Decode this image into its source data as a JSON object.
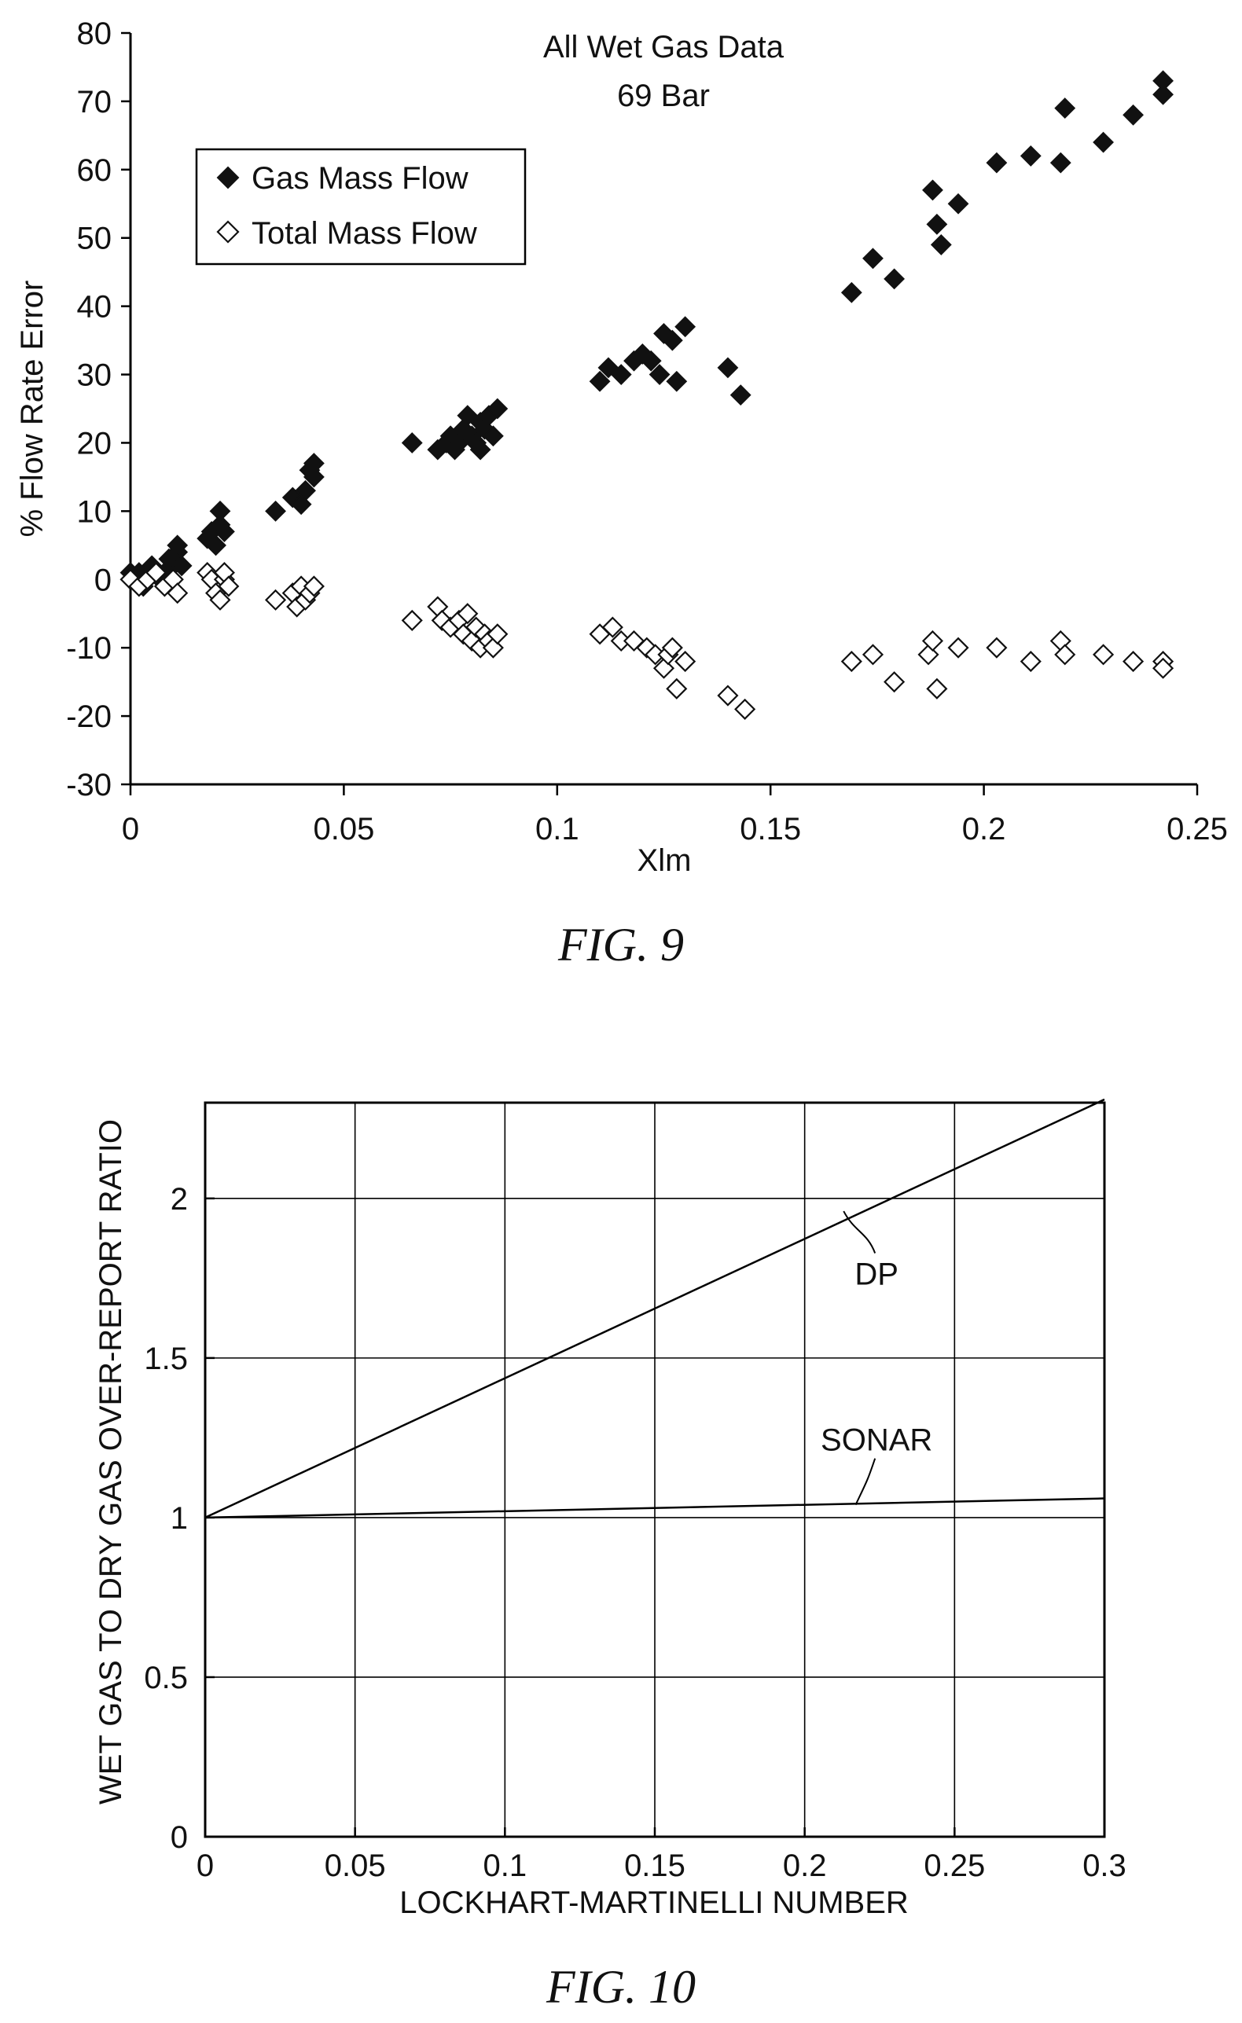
{
  "figures": [
    {
      "label": "FIG. 9"
    },
    {
      "label": "FIG. 10"
    }
  ],
  "chart_data": [
    {
      "type": "scatter",
      "title": "All Wet Gas Data",
      "subtitle": "69 Bar",
      "xlabel": "Xlm",
      "ylabel": "% Flow Rate Error",
      "xlim": [
        0,
        0.25
      ],
      "ylim": [
        -30,
        80
      ],
      "xticks": [
        "0",
        "0.05",
        "0.1",
        "0.15",
        "0.2",
        "0.25"
      ],
      "yticks": [
        "80",
        "70",
        "60",
        "50",
        "40",
        "30",
        "20",
        "10",
        "0",
        "-10",
        "-20",
        "-30"
      ],
      "grid": false,
      "legend_position": "top-left",
      "series": [
        {
          "name": "Gas Mass Flow",
          "marker": "filled-diamond",
          "color": "#111111",
          "points": [
            [
              0.0,
              1
            ],
            [
              0.001,
              0
            ],
            [
              0.002,
              1
            ],
            [
              0.003,
              -1
            ],
            [
              0.004,
              0
            ],
            [
              0.005,
              2
            ],
            [
              0.006,
              1
            ],
            [
              0.007,
              0
            ],
            [
              0.008,
              1
            ],
            [
              0.009,
              3
            ],
            [
              0.01,
              2
            ],
            [
              0.011,
              4
            ],
            [
              0.011,
              5
            ],
            [
              0.012,
              2
            ],
            [
              0.01,
              0
            ],
            [
              0.018,
              6
            ],
            [
              0.019,
              7
            ],
            [
              0.02,
              5
            ],
            [
              0.021,
              8
            ],
            [
              0.021,
              10
            ],
            [
              0.022,
              7
            ],
            [
              0.034,
              10
            ],
            [
              0.038,
              12
            ],
            [
              0.04,
              11
            ],
            [
              0.041,
              13
            ],
            [
              0.042,
              16
            ],
            [
              0.043,
              15
            ],
            [
              0.043,
              17
            ],
            [
              0.066,
              20
            ],
            [
              0.072,
              19
            ],
            [
              0.074,
              20
            ],
            [
              0.075,
              21
            ],
            [
              0.076,
              19
            ],
            [
              0.077,
              20
            ],
            [
              0.078,
              22
            ],
            [
              0.079,
              24
            ],
            [
              0.08,
              21
            ],
            [
              0.081,
              20
            ],
            [
              0.082,
              23
            ],
            [
              0.082,
              19
            ],
            [
              0.083,
              22
            ],
            [
              0.084,
              24
            ],
            [
              0.085,
              21
            ],
            [
              0.086,
              25
            ],
            [
              0.11,
              29
            ],
            [
              0.112,
              31
            ],
            [
              0.115,
              30
            ],
            [
              0.118,
              32
            ],
            [
              0.12,
              33
            ],
            [
              0.122,
              32
            ],
            [
              0.124,
              30
            ],
            [
              0.125,
              36
            ],
            [
              0.127,
              35
            ],
            [
              0.128,
              29
            ],
            [
              0.13,
              37
            ],
            [
              0.14,
              31
            ],
            [
              0.143,
              27
            ],
            [
              0.169,
              42
            ],
            [
              0.174,
              47
            ],
            [
              0.179,
              44
            ],
            [
              0.188,
              57
            ],
            [
              0.189,
              52
            ],
            [
              0.19,
              49
            ],
            [
              0.194,
              55
            ],
            [
              0.203,
              61
            ],
            [
              0.211,
              62
            ],
            [
              0.218,
              61
            ],
            [
              0.219,
              69
            ],
            [
              0.228,
              64
            ],
            [
              0.235,
              68
            ],
            [
              0.242,
              71
            ],
            [
              0.242,
              73
            ]
          ]
        },
        {
          "name": "Total Mass Flow",
          "marker": "open-diamond",
          "color": "#111111",
          "points": [
            [
              0.0,
              0
            ],
            [
              0.002,
              -1
            ],
            [
              0.004,
              0
            ],
            [
              0.006,
              1
            ],
            [
              0.008,
              -1
            ],
            [
              0.01,
              0
            ],
            [
              0.011,
              -2
            ],
            [
              0.018,
              1
            ],
            [
              0.019,
              0
            ],
            [
              0.02,
              -2
            ],
            [
              0.021,
              -3
            ],
            [
              0.022,
              0
            ],
            [
              0.022,
              1
            ],
            [
              0.023,
              -1
            ],
            [
              0.034,
              -3
            ],
            [
              0.038,
              -2
            ],
            [
              0.039,
              -4
            ],
            [
              0.04,
              -1
            ],
            [
              0.041,
              -3
            ],
            [
              0.042,
              -2
            ],
            [
              0.043,
              -1
            ],
            [
              0.066,
              -6
            ],
            [
              0.072,
              -4
            ],
            [
              0.073,
              -6
            ],
            [
              0.075,
              -7
            ],
            [
              0.077,
              -6
            ],
            [
              0.078,
              -8
            ],
            [
              0.079,
              -5
            ],
            [
              0.08,
              -9
            ],
            [
              0.081,
              -7
            ],
            [
              0.082,
              -10
            ],
            [
              0.083,
              -8
            ],
            [
              0.084,
              -9
            ],
            [
              0.085,
              -10
            ],
            [
              0.086,
              -8
            ],
            [
              0.11,
              -8
            ],
            [
              0.113,
              -7
            ],
            [
              0.115,
              -9
            ],
            [
              0.118,
              -9
            ],
            [
              0.121,
              -10
            ],
            [
              0.123,
              -11
            ],
            [
              0.125,
              -13
            ],
            [
              0.126,
              -11
            ],
            [
              0.127,
              -10
            ],
            [
              0.128,
              -16
            ],
            [
              0.13,
              -12
            ],
            [
              0.14,
              -17
            ],
            [
              0.144,
              -19
            ],
            [
              0.169,
              -12
            ],
            [
              0.174,
              -11
            ],
            [
              0.179,
              -15
            ],
            [
              0.187,
              -11
            ],
            [
              0.188,
              -9
            ],
            [
              0.189,
              -16
            ],
            [
              0.194,
              -10
            ],
            [
              0.203,
              -10
            ],
            [
              0.211,
              -12
            ],
            [
              0.218,
              -9
            ],
            [
              0.219,
              -11
            ],
            [
              0.228,
              -11
            ],
            [
              0.235,
              -12
            ],
            [
              0.242,
              -12
            ],
            [
              0.242,
              -13
            ]
          ]
        }
      ]
    },
    {
      "type": "line",
      "xlabel": "LOCKHART-MARTINELLI NUMBER",
      "ylabel": "WET GAS TO DRY GAS OVER-REPORT RATIO",
      "xlim": [
        0,
        0.3
      ],
      "ylim": [
        0,
        2.3
      ],
      "xticks": [
        "0",
        "0.05",
        "0.1",
        "0.15",
        "0.2",
        "0.25",
        "0.3"
      ],
      "yticks": [
        "0",
        "0.5",
        "1",
        "1.5",
        "2"
      ],
      "grid": true,
      "series": [
        {
          "name": "DP",
          "x": [
            0,
            0.3
          ],
          "y": [
            1.0,
            2.31
          ],
          "label_at": [
            0.224,
            1.73
          ],
          "leader_to": [
            0.213,
            1.96
          ]
        },
        {
          "name": "SONAR",
          "x": [
            0,
            0.3
          ],
          "y": [
            1.0,
            1.06
          ],
          "label_at": [
            0.224,
            1.21
          ],
          "leader_to": [
            0.217,
            1.04
          ]
        }
      ]
    }
  ]
}
